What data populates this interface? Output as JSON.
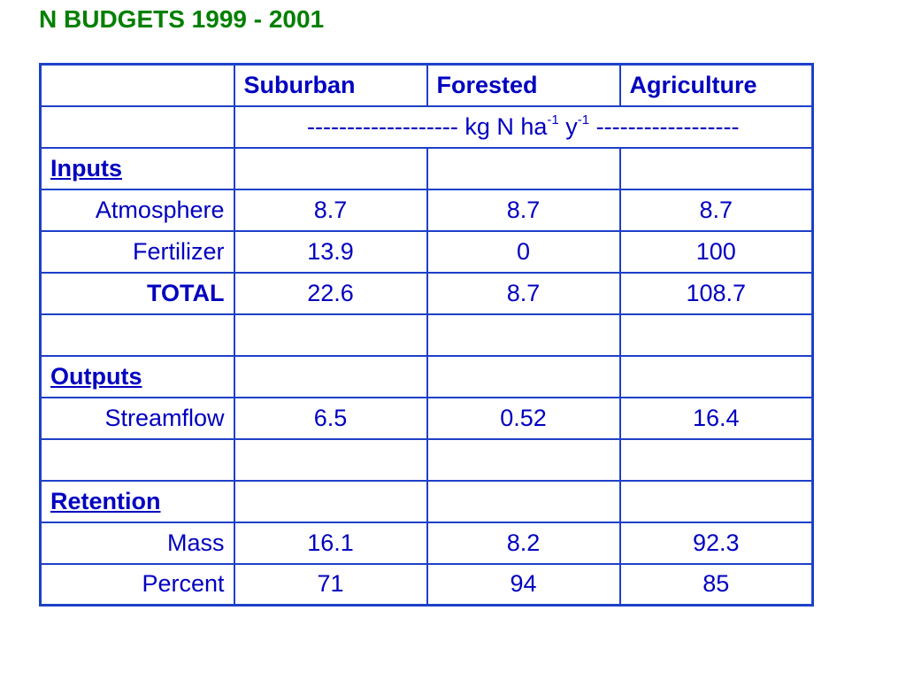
{
  "title": "N BUDGETS 1999 - 2001",
  "table": {
    "columns": [
      "Suburban",
      "Forested",
      "Agriculture"
    ],
    "units": {
      "prefix": "------------------- kg N ha",
      "exp1": "-1",
      "mid": " y",
      "exp2": "-1",
      "suffix": " ------------------"
    },
    "sections": {
      "inputs": "Inputs",
      "outputs": "Outputs",
      "retention": "Retention"
    },
    "rows": {
      "atmosphere": {
        "label": "Atmosphere",
        "values": [
          "8.7",
          "8.7",
          "8.7"
        ]
      },
      "fertilizer": {
        "label": "Fertilizer",
        "values": [
          "13.9",
          "0",
          "100"
        ]
      },
      "total": {
        "label": "TOTAL",
        "values": [
          "22.6",
          "8.7",
          "108.7"
        ]
      },
      "streamflow": {
        "label": "Streamflow",
        "values": [
          "6.5",
          "0.52",
          "16.4"
        ]
      },
      "mass": {
        "label": "Mass",
        "values": [
          "16.1",
          "8.2",
          "92.3"
        ]
      },
      "percent": {
        "label": "Percent",
        "values": [
          "71",
          "94",
          "85"
        ]
      }
    }
  }
}
